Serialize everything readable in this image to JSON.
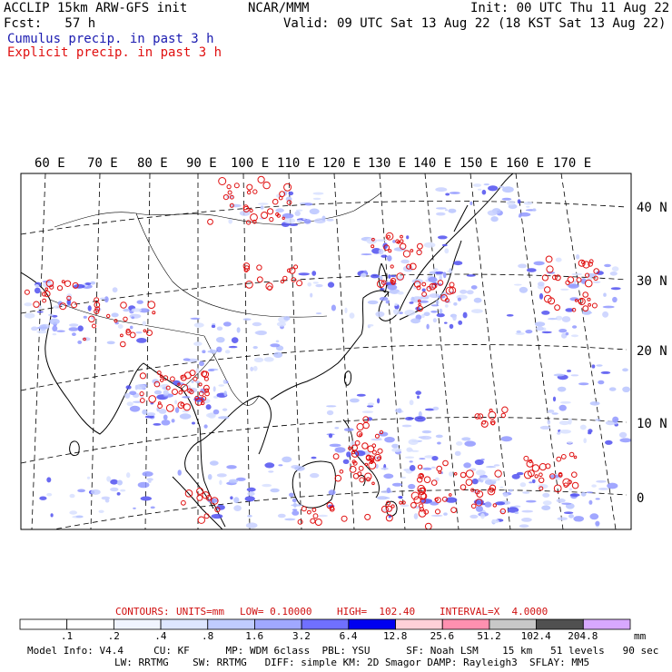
{
  "header": {
    "line1_left": "ACCLIP 15km ARW-GFS init",
    "line1_center": "NCAR/MMM",
    "line1_right": "Init: 00 UTC Thu 11 Aug 22",
    "line2_left": "Fcst:   57 h",
    "line2_right": "Valid: 09 UTC Sat 13 Aug 22 (18 KST Sat 13 Aug 22)",
    "line3_cumulus": "Cumulus precip. in past 3 h",
    "line4_explicit": "Explicit precip. in past 3 h",
    "cumulus_color": "#1a1ab0",
    "explicit_color": "#e01010"
  },
  "map": {
    "lon_labels": [
      "60 E",
      "70 E",
      "80 E",
      "90 E",
      "100 E",
      "110 E",
      "120 E",
      "130 E",
      "140 E",
      "150 E",
      "160 E",
      "170 E"
    ],
    "lat_labels": [
      "40 N",
      "30 N",
      "20 N",
      "10 N",
      "0"
    ]
  },
  "contours": {
    "label": "CONTOURS:",
    "units": "UNITS=mm",
    "low": "LOW= 0.10000",
    "high": "HIGH=  102.40",
    "interval": "INTERVAL=X  4.0000",
    "color": "#d01010"
  },
  "colorbar": {
    "labels": [
      ".1",
      ".2",
      ".4",
      ".8",
      "1.6",
      "3.2",
      "6.4",
      "12.8",
      "25.6",
      "51.2",
      "102.4",
      "204.8"
    ],
    "unit": "mm",
    "colors": [
      "#ffffff",
      "#ffffff",
      "#f0f4ff",
      "#dde6ff",
      "#c0ccff",
      "#a0a8ff",
      "#7070ff",
      "#0000f0",
      "#ffd0d8",
      "#ff90b0",
      "#c8c8c8",
      "#505050",
      "#d8a8ff"
    ]
  },
  "footer": {
    "line1": "Model Info: V4.4     CU: KF      MP: WDM 6class  PBL: YSU      SF: Noah LSM    15 km   51 levels   90 sec",
    "line2": "LW: RRTMG    SW: RRTMG   DIFF: simple KM: 2D Smagor DAMP: Rayleigh3  SFLAY: MM5"
  }
}
